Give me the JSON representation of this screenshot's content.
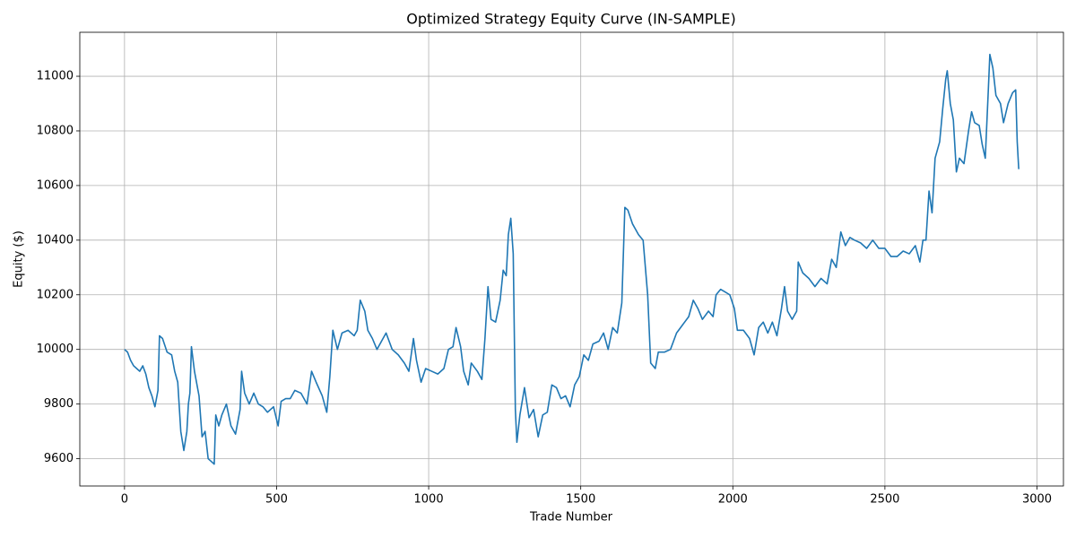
{
  "chart_data": {
    "type": "line",
    "title": "Optimized Strategy Equity Curve (IN-SAMPLE)",
    "xlabel": "Trade Number",
    "ylabel": "Equity ($)",
    "color": "#1f77b4",
    "grid": true,
    "xlim": [
      -147,
      3087
    ],
    "ylim": [
      9500,
      11161
    ],
    "xticks": [
      0,
      500,
      1000,
      1500,
      2000,
      2500,
      3000
    ],
    "yticks": [
      9600,
      9800,
      10000,
      10200,
      10400,
      10600,
      10800,
      11000
    ],
    "x": [
      0,
      10,
      20,
      30,
      40,
      50,
      60,
      70,
      80,
      90,
      100,
      110,
      115,
      125,
      140,
      155,
      165,
      175,
      185,
      195,
      205,
      210,
      215,
      220,
      230,
      245,
      255,
      265,
      275,
      285,
      295,
      300,
      310,
      320,
      335,
      350,
      365,
      380,
      385,
      395,
      410,
      425,
      440,
      455,
      470,
      490,
      505,
      515,
      530,
      545,
      560,
      580,
      600,
      615,
      630,
      650,
      665,
      675,
      685,
      700,
      715,
      735,
      755,
      765,
      775,
      790,
      800,
      815,
      830,
      845,
      860,
      880,
      900,
      920,
      935,
      950,
      960,
      975,
      990,
      1010,
      1030,
      1050,
      1065,
      1080,
      1090,
      1105,
      1115,
      1130,
      1140,
      1160,
      1175,
      1185,
      1195,
      1205,
      1220,
      1235,
      1245,
      1255,
      1262,
      1270,
      1278,
      1285,
      1290,
      1300,
      1315,
      1330,
      1345,
      1360,
      1375,
      1390,
      1405,
      1420,
      1435,
      1450,
      1465,
      1480,
      1495,
      1510,
      1525,
      1540,
      1560,
      1575,
      1590,
      1605,
      1620,
      1635,
      1645,
      1655,
      1670,
      1690,
      1705,
      1720,
      1730,
      1745,
      1755,
      1775,
      1795,
      1815,
      1835,
      1855,
      1870,
      1885,
      1900,
      1920,
      1935,
      1945,
      1960,
      1975,
      1990,
      2005,
      2015,
      2035,
      2055,
      2070,
      2085,
      2100,
      2115,
      2130,
      2145,
      2160,
      2170,
      2180,
      2195,
      2210,
      2215,
      2230,
      2250,
      2270,
      2290,
      2310,
      2325,
      2340,
      2355,
      2370,
      2385,
      2400,
      2420,
      2440,
      2460,
      2480,
      2500,
      2520,
      2540,
      2560,
      2580,
      2600,
      2615,
      2625,
      2635,
      2645,
      2655,
      2665,
      2680,
      2690,
      2700,
      2705,
      2715,
      2725,
      2735,
      2745,
      2760,
      2775,
      2785,
      2795,
      2810,
      2820,
      2830,
      2840,
      2845,
      2855,
      2865,
      2880,
      2890,
      2905,
      2920,
      2930,
      2935,
      2940
    ],
    "values": [
      10000,
      9990,
      9960,
      9940,
      9930,
      9920,
      9940,
      9910,
      9860,
      9830,
      9790,
      9850,
      10050,
      10040,
      9990,
      9980,
      9920,
      9880,
      9700,
      9630,
      9700,
      9800,
      9840,
      10010,
      9920,
      9830,
      9680,
      9700,
      9600,
      9590,
      9580,
      9760,
      9720,
      9760,
      9800,
      9720,
      9690,
      9780,
      9920,
      9840,
      9800,
      9840,
      9800,
      9790,
      9770,
      9790,
      9720,
      9810,
      9820,
      9820,
      9850,
      9840,
      9800,
      9920,
      9880,
      9830,
      9770,
      9900,
      10070,
      10000,
      10060,
      10070,
      10050,
      10070,
      10180,
      10140,
      10070,
      10040,
      10000,
      10030,
      10060,
      10000,
      9980,
      9950,
      9920,
      10040,
      9960,
      9880,
      9930,
      9920,
      9910,
      9930,
      10000,
      10010,
      10080,
      10010,
      9920,
      9870,
      9950,
      9920,
      9890,
      10040,
      10230,
      10110,
      10100,
      10180,
      10290,
      10270,
      10420,
      10480,
      10350,
      9780,
      9660,
      9760,
      9860,
      9750,
      9780,
      9680,
      9760,
      9770,
      9870,
      9860,
      9820,
      9830,
      9790,
      9870,
      9900,
      9980,
      9960,
      10020,
      10030,
      10060,
      10000,
      10080,
      10060,
      10170,
      10520,
      10510,
      10460,
      10420,
      10400,
      10200,
      9950,
      9930,
      9990,
      9990,
      10000,
      10060,
      10090,
      10120,
      10180,
      10150,
      10110,
      10140,
      10120,
      10200,
      10220,
      10210,
      10200,
      10150,
      10070,
      10070,
      10040,
      9980,
      10080,
      10100,
      10060,
      10100,
      10050,
      10150,
      10230,
      10140,
      10110,
      10140,
      10320,
      10280,
      10260,
      10230,
      10260,
      10240,
      10330,
      10300,
      10430,
      10380,
      10410,
      10400,
      10390,
      10370,
      10400,
      10370,
      10370,
      10340,
      10340,
      10360,
      10350,
      10380,
      10320,
      10400,
      10400,
      10580,
      10500,
      10700,
      10760,
      10880,
      10990,
      11020,
      10900,
      10840,
      10650,
      10700,
      10680,
      10800,
      10870,
      10830,
      10820,
      10750,
      10700,
      10950,
      11080,
      11030,
      10930,
      10900,
      10830,
      10900,
      10940,
      10950,
      10760,
      10660
    ]
  }
}
